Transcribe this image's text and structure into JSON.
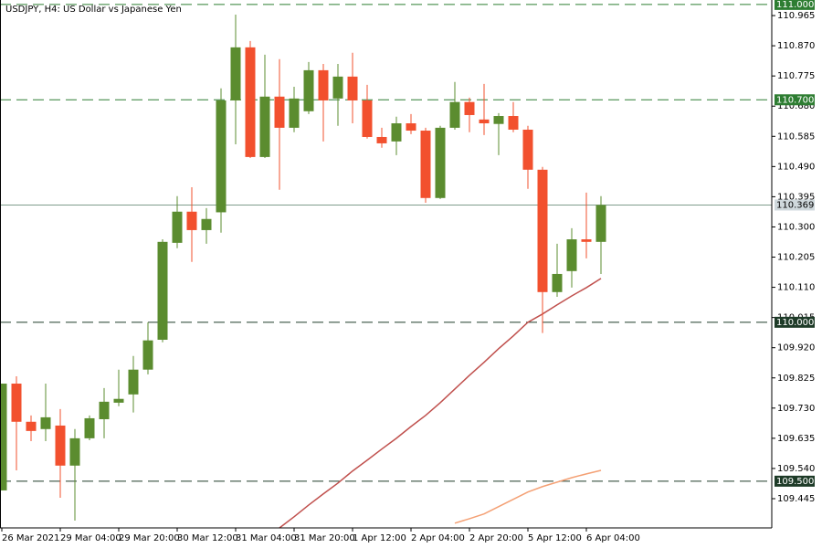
{
  "chart_data": {
    "type": "candlestick",
    "title": "USDJPY, H4:  US Dollar vs Japanese Yen",
    "categories": [
      "26 Mar 2021",
      null,
      null,
      null,
      "29 Mar 04:00",
      null,
      null,
      null,
      "29 Mar 20:00",
      null,
      null,
      null,
      "30 Mar 12:00",
      null,
      null,
      null,
      "31 Mar 04:00",
      null,
      null,
      null,
      "31 Mar 20:00",
      null,
      null,
      null,
      "1 Apr 12:00",
      null,
      null,
      null,
      "2 Apr 04:00",
      null,
      null,
      null,
      "2 Apr 20:00",
      null,
      null,
      null,
      "5 Apr 12:00",
      null,
      null,
      null,
      "6 Apr 04:00",
      null
    ],
    "up_color": "#5b8c2f",
    "down_color": "#f2502e",
    "open": [
      109.471,
      109.807,
      109.687,
      109.664,
      109.675,
      109.549,
      109.635,
      109.695,
      109.747,
      109.773,
      109.851,
      109.945,
      110.25,
      110.348,
      110.29,
      110.346,
      110.698,
      110.865,
      110.52,
      110.71,
      110.612,
      110.664,
      110.793,
      110.704,
      110.773,
      110.698,
      110.583,
      110.569,
      110.626,
      110.603,
      110.391,
      110.612,
      110.693,
      110.638,
      110.624,
      110.649,
      110.606,
      110.48,
      110.095,
      110.161,
      110.261,
      110.253
    ],
    "high": [
      109.807,
      109.83,
      109.707,
      109.807,
      109.727,
      109.664,
      109.707,
      109.793,
      109.851,
      109.894,
      110.0,
      110.261,
      110.397,
      110.425,
      110.359,
      110.736,
      110.968,
      110.885,
      110.842,
      110.828,
      110.741,
      110.819,
      110.813,
      110.813,
      110.848,
      110.747,
      110.612,
      110.647,
      110.655,
      110.612,
      110.618,
      110.756,
      110.707,
      110.75,
      110.658,
      110.693,
      110.618,
      110.489,
      110.247,
      110.296,
      110.408,
      110.397
    ],
    "low": [
      109.471,
      109.534,
      109.626,
      109.626,
      109.448,
      109.376,
      109.629,
      109.635,
      109.736,
      109.716,
      109.836,
      109.937,
      110.233,
      110.19,
      110.247,
      110.282,
      110.56,
      110.517,
      110.517,
      110.417,
      110.598,
      110.655,
      110.569,
      110.618,
      110.626,
      110.578,
      110.549,
      110.526,
      110.592,
      110.376,
      110.388,
      110.606,
      110.598,
      110.589,
      110.526,
      110.598,
      110.42,
      109.966,
      110.08,
      110.109,
      110.201,
      110.152
    ],
    "close": [
      109.807,
      109.687,
      109.658,
      109.701,
      109.549,
      109.635,
      109.698,
      109.75,
      109.759,
      109.851,
      109.943,
      110.253,
      110.348,
      110.29,
      110.325,
      110.698,
      110.865,
      110.52,
      110.71,
      110.612,
      110.704,
      110.793,
      110.698,
      110.773,
      110.698,
      110.583,
      110.563,
      110.626,
      110.603,
      110.391,
      110.612,
      110.693,
      110.652,
      110.626,
      110.649,
      110.606,
      110.48,
      110.095,
      110.152,
      110.261,
      110.253,
      110.369
    ],
    "indicators": [
      {
        "color": "#c0504d",
        "values": [
          null,
          null,
          null,
          null,
          null,
          null,
          null,
          null,
          null,
          null,
          null,
          null,
          null,
          null,
          null,
          null,
          null,
          null,
          null,
          109.353,
          109.388,
          109.425,
          109.46,
          109.494,
          109.532,
          109.566,
          109.601,
          109.635,
          109.672,
          109.707,
          109.747,
          109.79,
          109.833,
          109.874,
          109.917,
          109.957,
          110.0,
          110.026,
          110.055,
          110.083,
          110.109,
          110.138
        ]
      },
      {
        "color": "#f4a074",
        "values": [
          null,
          null,
          null,
          null,
          null,
          null,
          null,
          null,
          null,
          null,
          null,
          null,
          null,
          null,
          null,
          null,
          null,
          null,
          null,
          null,
          null,
          null,
          null,
          null,
          null,
          null,
          null,
          null,
          null,
          null,
          null,
          109.368,
          109.382,
          109.397,
          109.42,
          109.443,
          109.466,
          109.483,
          109.497,
          109.511,
          109.523,
          109.534
        ]
      }
    ],
    "ylim": [
      109.353,
      111.014
    ],
    "yticks": [
      110.965,
      {
        "value": 110.87,
        "label": "110.870"
      },
      110.775,
      {
        "value": 110.68,
        "label": "110.680"
      },
      110.585,
      {
        "value": 110.49,
        "label": "110.490"
      },
      110.395,
      {
        "value": 110.3,
        "label": "110.300"
      },
      110.205,
      {
        "value": 110.11,
        "label": "110.110"
      },
      110.015,
      {
        "value": 109.92,
        "label": "109.920"
      },
      109.825,
      {
        "value": 109.73,
        "label": "109.730"
      },
      109.635,
      {
        "value": 109.54,
        "label": "109.540"
      },
      109.445
    ],
    "levels": [
      {
        "value": 111,
        "label": "111.000",
        "color": "#2e7d32"
      },
      {
        "value": 110.7,
        "label": "110.700",
        "color": "#2e7d32"
      },
      {
        "value": 110,
        "label": "110.000",
        "color": "#1e3b28"
      },
      {
        "value": 109.5,
        "label": "109.500",
        "color": "#1e3b28"
      }
    ],
    "last_price": 110.369,
    "last_price_color": "#7f9c8c"
  }
}
